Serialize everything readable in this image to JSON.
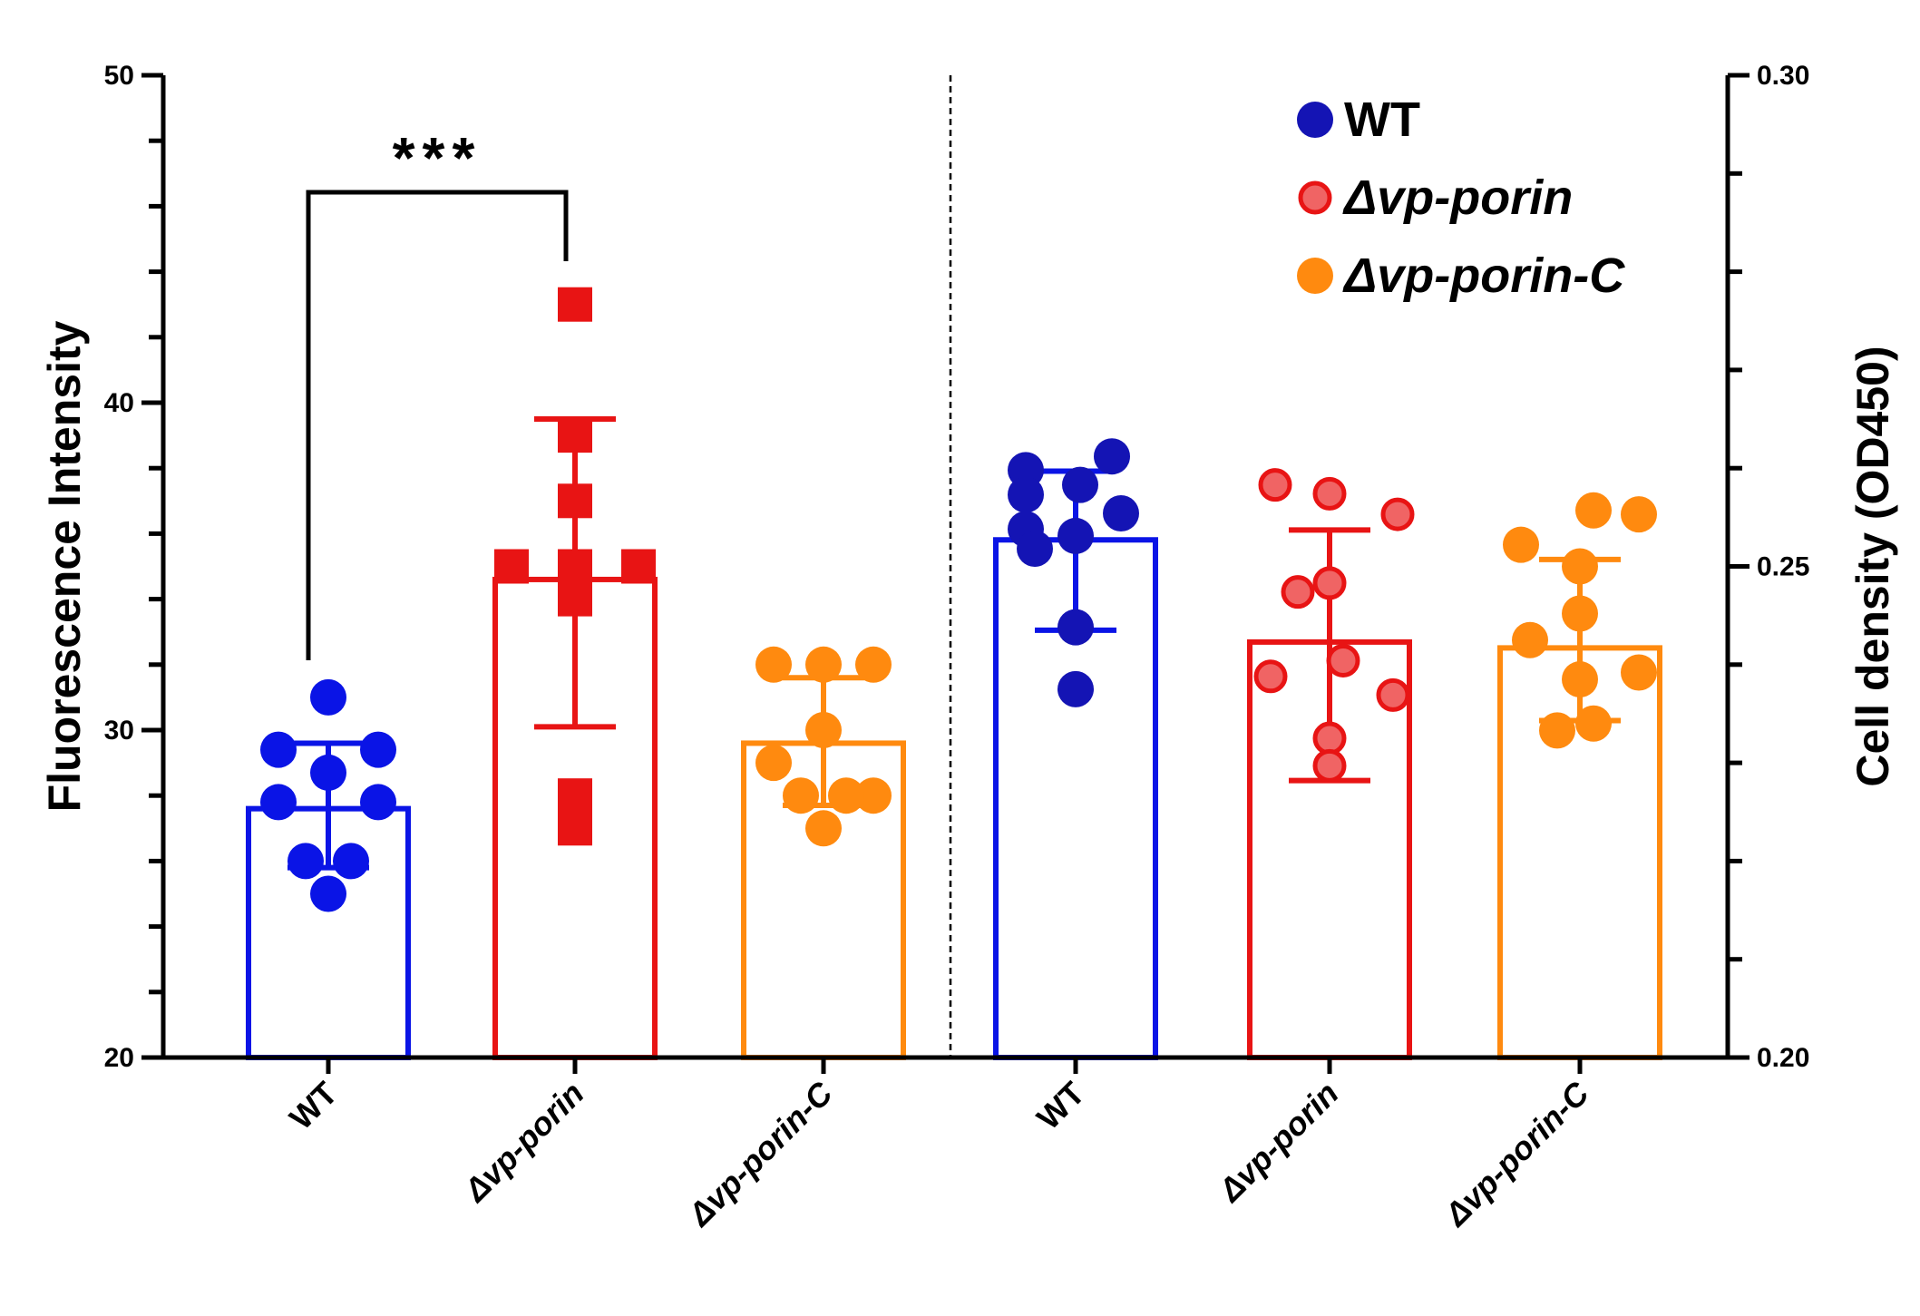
{
  "chart_data": {
    "type": "bar",
    "colors": {
      "WT": "#0a14e6",
      "dvp-porin": "#e81414",
      "dvp-porin-C": "#ff8a0f",
      "WT_right_points": "#1414b4"
    },
    "left_axis": {
      "label": "Fluorescence Intensity",
      "ylim": [
        20,
        50
      ],
      "major_ticks": [
        20,
        30,
        40,
        50
      ],
      "tick_labels": [
        "20",
        "30",
        "40",
        "50"
      ],
      "minor_step": 2
    },
    "right_axis": {
      "label": "Cell density (OD450)",
      "ylim": [
        0.2,
        0.3
      ],
      "major_ticks": [
        0.2,
        0.25,
        0.3
      ],
      "tick_labels": [
        "0.20",
        "0.25",
        "0.30"
      ],
      "minor_step": 0.01
    },
    "categories": [
      "WT",
      "Δvp-porin",
      "Δvp-porin-C",
      "WT",
      "Δvp-porin",
      "Δvp-porin-C"
    ],
    "groups": [
      {
        "name": "WT",
        "series_key": "WT",
        "axis": "left",
        "mean": 27.6,
        "sd_low": 25.8,
        "sd_high": 29.6,
        "marker": "circle",
        "points": [
          31.0,
          29.4,
          29.4,
          28.7,
          27.8,
          27.8,
          26.0,
          26.0,
          25.0
        ]
      },
      {
        "name": "Δvp-porin",
        "series_key": "dvp-porin",
        "axis": "left",
        "mean": 34.6,
        "sd_low": 30.1,
        "sd_high": 39.5,
        "marker": "square",
        "points": [
          43.0,
          39.0,
          37.0,
          35.0,
          35.0,
          35.0,
          34.0,
          28.0,
          27.0
        ]
      },
      {
        "name": "Δvp-porin-C",
        "series_key": "dvp-porin-C",
        "axis": "left",
        "mean": 29.6,
        "sd_low": 27.7,
        "sd_high": 31.6,
        "marker": "circle",
        "points": [
          32.0,
          32.0,
          32.0,
          30.0,
          29.0,
          28.0,
          28.0,
          28.0,
          27.0
        ]
      },
      {
        "name": "WT",
        "series_key": "WT_right_points",
        "bar_key": "WT",
        "axis": "right",
        "mean": 0.2527,
        "sd_low": 0.2435,
        "sd_high": 0.2597,
        "marker": "circle",
        "points": [
          0.2612,
          0.2598,
          0.2583,
          0.2573,
          0.2554,
          0.2538,
          0.2531,
          0.2518,
          0.2438,
          0.2375
        ]
      },
      {
        "name": "Δvp-porin",
        "series_key": "dvp-porin",
        "axis": "right",
        "mean": 0.2423,
        "sd_low": 0.2282,
        "sd_high": 0.2537,
        "marker": "circle-open",
        "points": [
          0.2583,
          0.2574,
          0.2553,
          0.2483,
          0.2474,
          0.2404,
          0.2388,
          0.2369,
          0.2325,
          0.2297
        ]
      },
      {
        "name": "Δvp-porin-C",
        "series_key": "dvp-porin-C",
        "axis": "right",
        "mean": 0.2417,
        "sd_low": 0.2343,
        "sd_high": 0.2507,
        "marker": "circle",
        "points": [
          0.2557,
          0.2553,
          0.2522,
          0.25,
          0.2452,
          0.2425,
          0.2392,
          0.2385,
          0.234,
          0.2333
        ]
      }
    ],
    "significance": {
      "label": "***",
      "from_group": 0,
      "to_group": 1
    },
    "legend": {
      "position": "top-right",
      "entries": [
        {
          "label": "WT",
          "series_key": "WT_right_points",
          "italic": false
        },
        {
          "label": "Δvp-porin",
          "series_key": "dvp-porin",
          "italic": true
        },
        {
          "label": "Δvp-porin-C",
          "series_key": "dvp-porin-C",
          "italic": true
        }
      ]
    }
  }
}
